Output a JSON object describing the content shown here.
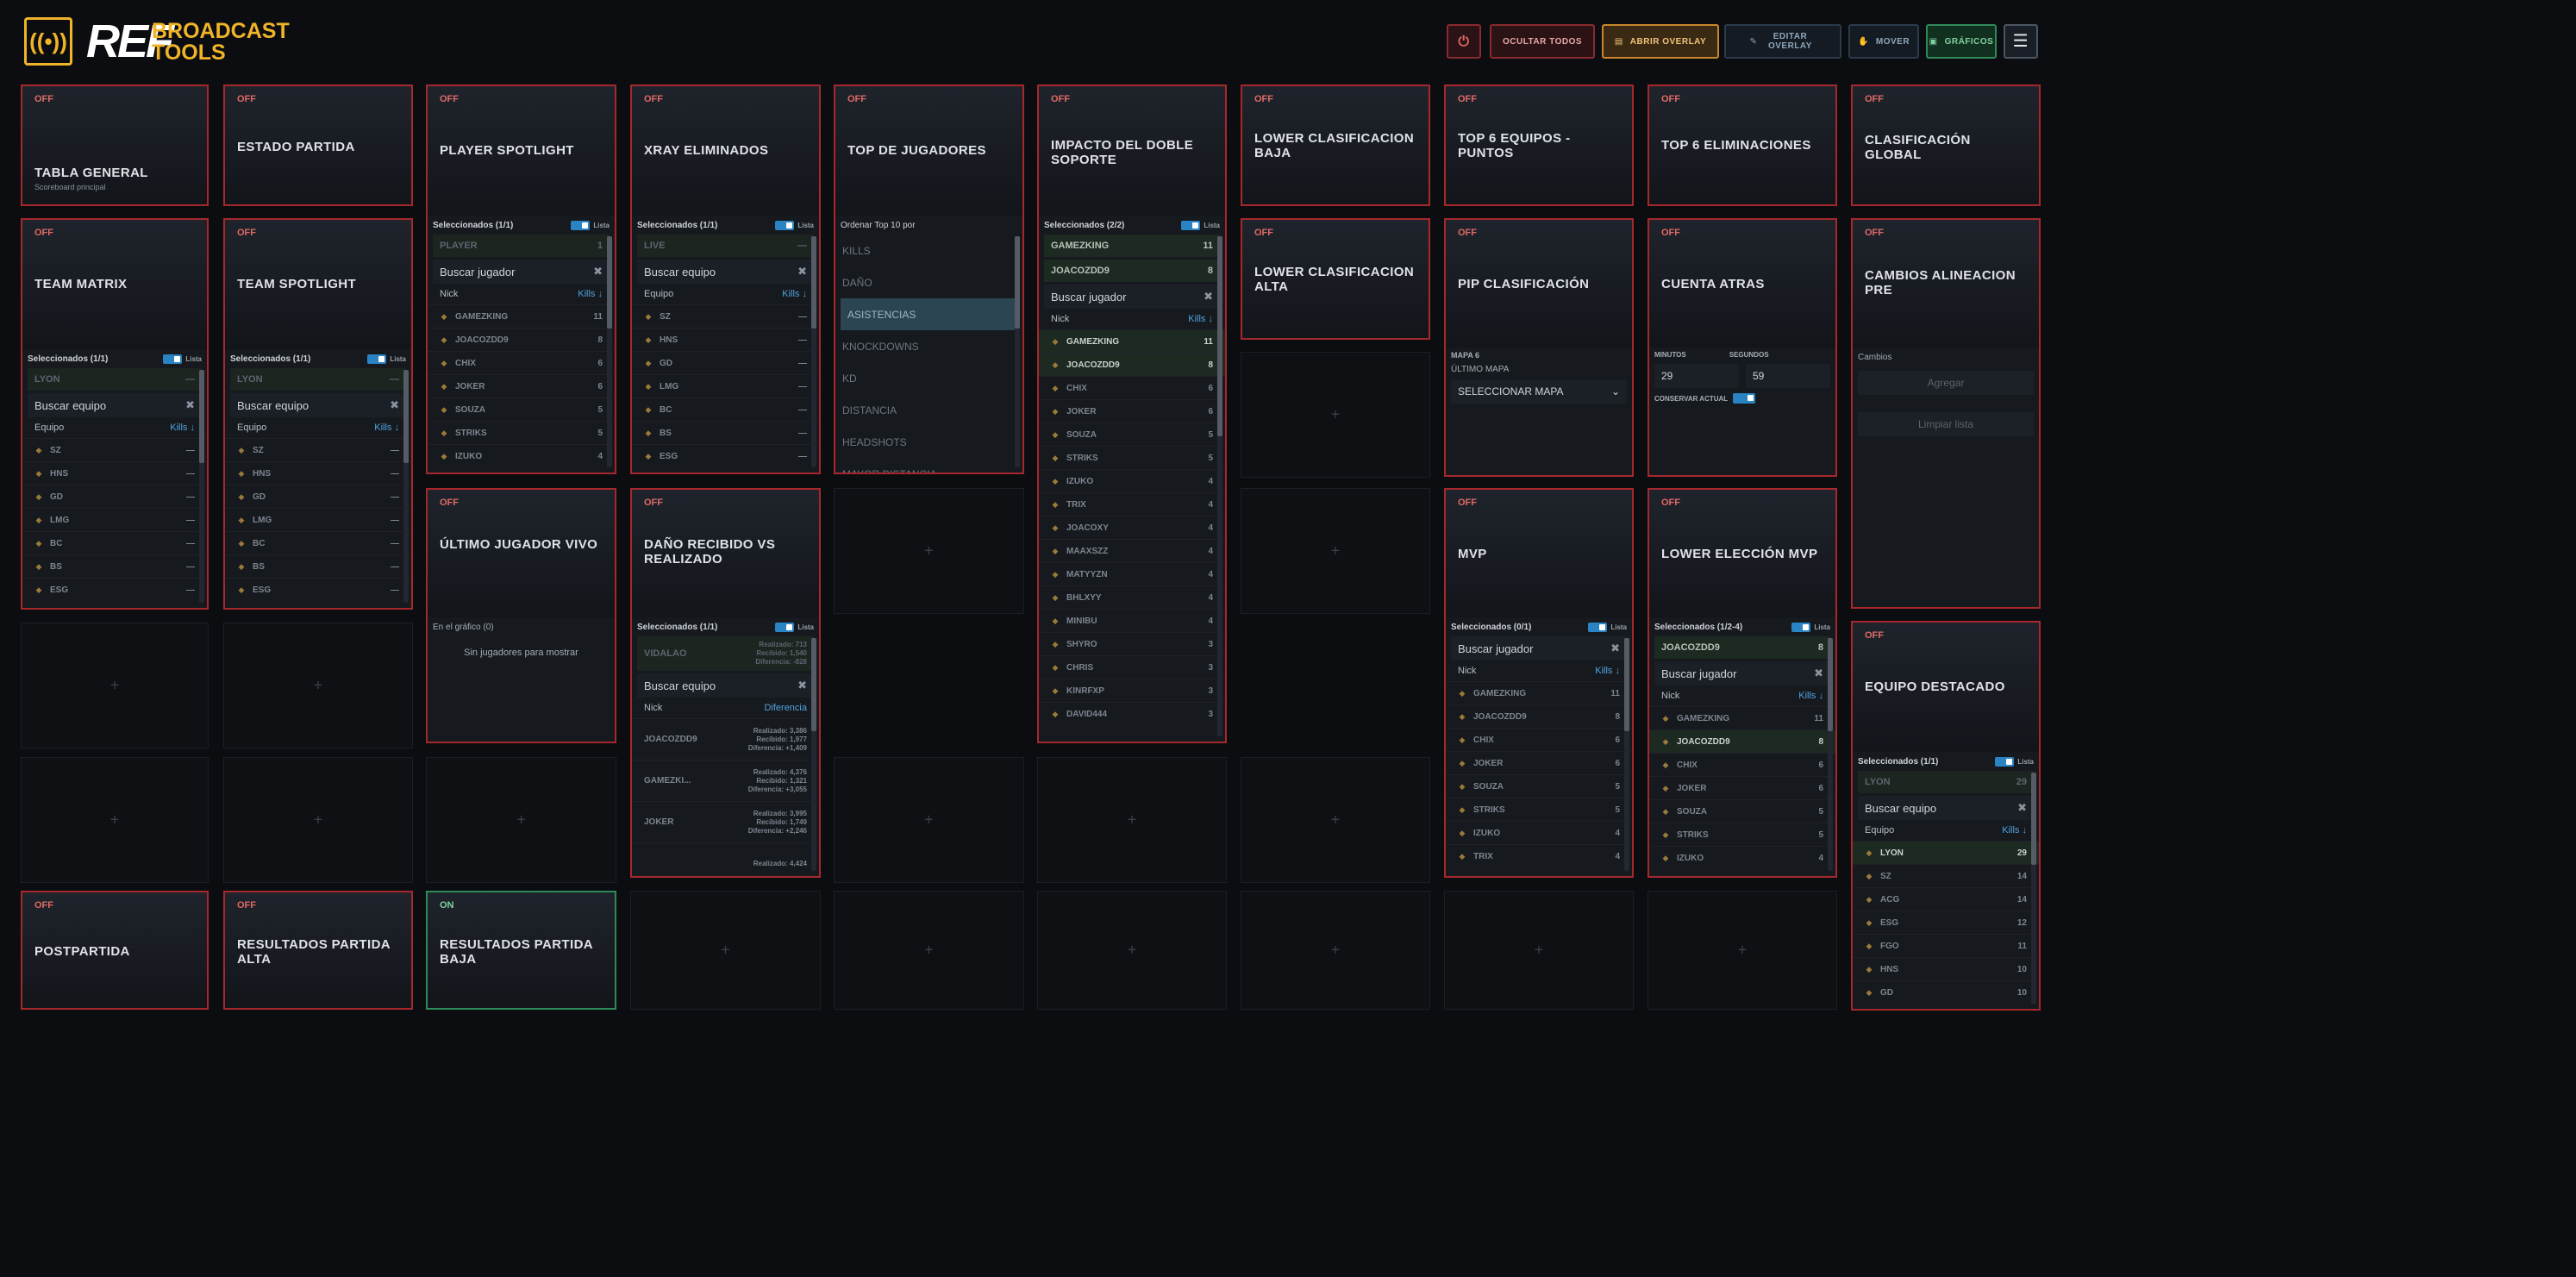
{
  "header": {
    "logo_ref": "REF",
    "logo_line1": "BROADCAST",
    "logo_line2": "TOOLS",
    "buttons": {
      "hide_all": "OCULTAR TODOS",
      "open_overlay": "ABRIR OVERLAY",
      "edit_overlay": "EDITAR OVERLAY",
      "move": "MOVER",
      "graphics": "GRÁFICOS"
    }
  },
  "colors": {
    "off_border": "#a6282c",
    "on_border": "#2f8a5a",
    "accent": "#f0b429",
    "toggle": "#2a84c4"
  },
  "tiles": {
    "tabla_general": {
      "status": "OFF",
      "title": "TABLA GENERAL",
      "sub": "Scoreboard principal"
    },
    "estado_partida": {
      "status": "OFF",
      "title": "ESTADO PARTIDA"
    },
    "player_spotlight": {
      "status": "OFF",
      "title": "PLAYER SPOTLIGHT"
    },
    "xray": {
      "status": "OFF",
      "title": "XRAY ELIMINADOS"
    },
    "top_jugadores": {
      "status": "OFF",
      "title": "TOP DE JUGADORES"
    },
    "impacto": {
      "status": "OFF",
      "title": "IMPACTO DEL DOBLE SOPORTE"
    },
    "lower_baja": {
      "status": "OFF",
      "title": "LOWER CLASIFICACION BAJA"
    },
    "top6_equipos": {
      "status": "OFF",
      "title": "TOP 6 EQUIPOS - PUNTOS"
    },
    "top6_elim": {
      "status": "OFF",
      "title": "TOP 6 ELIMINACIONES"
    },
    "clasif_global": {
      "status": "OFF",
      "title": "CLASIFICACIÓN GLOBAL"
    },
    "team_matrix": {
      "status": "OFF",
      "title": "TEAM MATRIX"
    },
    "team_spotlight": {
      "status": "OFF",
      "title": "TEAM SPOTLIGHT"
    },
    "lower_alta": {
      "status": "OFF",
      "title": "LOWER CLASIFICACION ALTA"
    },
    "pip": {
      "status": "OFF",
      "title": "PIP CLASIFICACIÓN"
    },
    "cuenta_atras": {
      "status": "OFF",
      "title": "CUENTA ATRAS"
    },
    "cambios": {
      "status": "OFF",
      "title": "CAMBIOS ALINEACION PRE"
    },
    "ultimo_vivo": {
      "status": "OFF",
      "title": "ÚLTIMO JUGADOR VIVO"
    },
    "dano": {
      "status": "OFF",
      "title": "DAÑO RECIBIDO VS REALIZADO"
    },
    "mvp": {
      "status": "OFF",
      "title": "MVP"
    },
    "lower_mvp": {
      "status": "OFF",
      "title": "LOWER ELECCIÓN MVP"
    },
    "equipo_destacado": {
      "status": "OFF",
      "title": "EQUIPO DESTACADO"
    },
    "postpartida": {
      "status": "OFF",
      "title": "POSTPARTIDA"
    },
    "res_alta": {
      "status": "OFF",
      "title": "RESULTADOS PARTIDA ALTA"
    },
    "res_baja": {
      "status": "ON",
      "title": "RESULTADOS PARTIDA BAJA"
    }
  },
  "common": {
    "lista": "Lista",
    "plus": "+"
  },
  "ps_panel": {
    "head": "Seleccionados (1/1)",
    "selected": "PLAYER",
    "selected_val": "1",
    "search": "Buscar jugador",
    "col1": "Nick",
    "col2": "Kills ↓",
    "rows": [
      [
        "GAMEZKING",
        "11"
      ],
      [
        "JOACOZDD9",
        "8"
      ],
      [
        "CHIX",
        "6"
      ],
      [
        "JOKER",
        "6"
      ],
      [
        "SOUZA",
        "5"
      ],
      [
        "STRIKS",
        "5"
      ],
      [
        "IZUKO",
        "4"
      ]
    ]
  },
  "xray_panel": {
    "head": "Seleccionados (1/1)",
    "selected": "LIVE",
    "selected_val": "—",
    "search": "Buscar equipo",
    "col1": "Equipo",
    "col2": "Kills ↓",
    "rows": [
      [
        "SZ",
        "—"
      ],
      [
        "HNS",
        "—"
      ],
      [
        "GD",
        "—"
      ],
      [
        "LMG",
        "—"
      ],
      [
        "BC",
        "—"
      ],
      [
        "BS",
        "—"
      ],
      [
        "ESG",
        "—"
      ]
    ]
  },
  "top_panel": {
    "head": "Ordenar Top 10 por",
    "options": [
      "KILLS",
      "DAÑO",
      "ASISTENCIAS",
      "KNOCKDOWNS",
      "KD",
      "DISTANCIA",
      "HEADSHOTS",
      "MAYOR DISTANCIA"
    ],
    "selected_index": 2
  },
  "impacto_panel": {
    "head": "Seleccionados (2/2)",
    "selected": [
      [
        "GAMEZKING",
        "11"
      ],
      [
        "JOACOZDD9",
        "8"
      ]
    ],
    "search": "Buscar jugador",
    "col1": "Nick",
    "col2": "Kills ↓",
    "rows": [
      [
        "GAMEZKING",
        "11"
      ],
      [
        "JOACOZDD9",
        "8"
      ],
      [
        "CHIX",
        "6"
      ],
      [
        "JOKER",
        "6"
      ],
      [
        "SOUZA",
        "5"
      ],
      [
        "STRIKS",
        "5"
      ],
      [
        "IZUKO",
        "4"
      ],
      [
        "TRIX",
        "4"
      ],
      [
        "JOACOXY",
        "4"
      ],
      [
        "MAAXSZZ",
        "4"
      ],
      [
        "MATYYZN",
        "4"
      ],
      [
        "BHLXYY",
        "4"
      ],
      [
        "MINIBU",
        "4"
      ],
      [
        "SHYRO",
        "3"
      ],
      [
        "CHRIS",
        "3"
      ],
      [
        "KINRFXP",
        "3"
      ],
      [
        "DAVID444",
        "3"
      ]
    ]
  },
  "tm_panel": {
    "head": "Seleccionados (1/1)",
    "selected": "LYON",
    "selected_val": "—",
    "search": "Buscar equipo",
    "col1": "Equipo",
    "col2": "Kills ↓",
    "rows": [
      [
        "SZ",
        "—"
      ],
      [
        "HNS",
        "—"
      ],
      [
        "GD",
        "—"
      ],
      [
        "LMG",
        "—"
      ],
      [
        "BC",
        "—"
      ],
      [
        "BS",
        "—"
      ],
      [
        "ESG",
        "—"
      ]
    ]
  },
  "tsp_panel": {
    "head": "Seleccionados (1/1)",
    "selected": "LYON",
    "selected_val": "—",
    "search": "Buscar equipo",
    "col1": "Equipo",
    "col2": "Kills ↓",
    "rows": [
      [
        "SZ",
        "—"
      ],
      [
        "HNS",
        "—"
      ],
      [
        "GD",
        "—"
      ],
      [
        "LMG",
        "—"
      ],
      [
        "BC",
        "—"
      ],
      [
        "BS",
        "—"
      ],
      [
        "ESG",
        "—"
      ]
    ]
  },
  "pip_panel": {
    "label": "MAPA 6",
    "sub": "ÚLTIMO MAPA",
    "select": "SELECCIONAR MAPA"
  },
  "cuenta_panel": {
    "min_label": "MINUTOS",
    "sec_label": "SEGUNDOS",
    "min": "29",
    "sec": "59",
    "keep": "CONSERVAR ACTUAL"
  },
  "cambios_panel": {
    "label": "Cambios",
    "add": "Agregar",
    "clear": "Limpiar lista"
  },
  "ultimo_panel": {
    "head": "En el gráfico (0)",
    "empty": "Sin jugadores para mostrar"
  },
  "dano_panel": {
    "head": "Seleccionados (1/1)",
    "selected": "VIDALAO",
    "selected_stats": [
      "Realizado: 713",
      "Recibido: 1,540",
      "Diferencia: -828"
    ],
    "search": "Buscar equipo",
    "col1": "Nick",
    "col2": "Diferencia",
    "rows": [
      {
        "name": "JOACOZDD9",
        "stats": [
          "Realizado: 3,386",
          "Recibido: 1,977",
          "Diferencia: +1,409"
        ]
      },
      {
        "name": "GAMEZKI...",
        "stats": [
          "Realizado: 4,376",
          "Recibido: 1,321",
          "Diferencia: +3,055"
        ]
      },
      {
        "name": "JOKER",
        "stats": [
          "Realizado: 3,995",
          "Recibido: 1,749",
          "Diferencia: +2,246"
        ]
      },
      {
        "name": "",
        "stats": [
          "Realizado: 4,424",
          "",
          ""
        ]
      }
    ]
  },
  "mvp_panel": {
    "head": "Seleccionados (0/1)",
    "search": "Buscar jugador",
    "col1": "Nick",
    "col2": "Kills ↓",
    "rows": [
      [
        "GAMEZKING",
        "11"
      ],
      [
        "JOACOZDD9",
        "8"
      ],
      [
        "CHIX",
        "6"
      ],
      [
        "JOKER",
        "6"
      ],
      [
        "SOUZA",
        "5"
      ],
      [
        "STRIKS",
        "5"
      ],
      [
        "IZUKO",
        "4"
      ],
      [
        "TRIX",
        "4"
      ]
    ]
  },
  "lmvp_panel": {
    "head": "Seleccionados (1/2-4)",
    "selected": "JOACOZDD9",
    "selected_val": "8",
    "search": "Buscar jugador",
    "col1": "Nick",
    "col2": "Kills ↓",
    "rows": [
      [
        "GAMEZKING",
        "11"
      ],
      [
        "JOACOZDD9",
        "8"
      ],
      [
        "CHIX",
        "6"
      ],
      [
        "JOKER",
        "6"
      ],
      [
        "SOUZA",
        "5"
      ],
      [
        "STRIKS",
        "5"
      ],
      [
        "IZUKO",
        "4"
      ]
    ]
  },
  "ed_panel": {
    "head": "Seleccionados (1/1)",
    "selected": "LYON",
    "selected_val": "29",
    "search": "Buscar equipo",
    "col1": "Equipo",
    "col2": "Kills ↓",
    "rows": [
      [
        "LYON",
        "29"
      ],
      [
        "SZ",
        "14"
      ],
      [
        "ACG",
        "14"
      ],
      [
        "ESG",
        "12"
      ],
      [
        "FGO",
        "11"
      ],
      [
        "HNS",
        "10"
      ],
      [
        "GD",
        "10"
      ]
    ]
  }
}
